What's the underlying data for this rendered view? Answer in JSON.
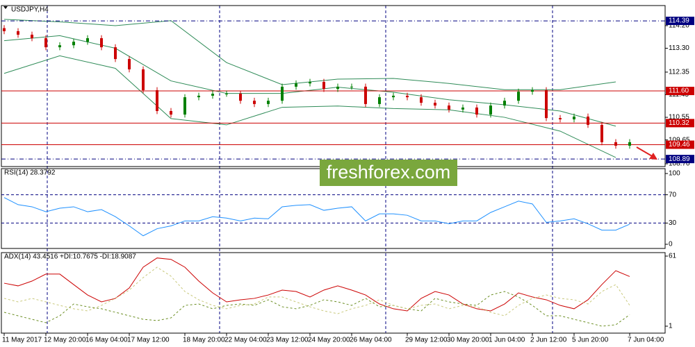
{
  "symbol_label": "USDJPY,H4",
  "watermark": "freshforex.com",
  "chart_data": [
    {
      "type": "candlestick",
      "title": "USDJPY,H4",
      "categories": [
        "11 May 2017",
        null,
        null,
        "12 May 20:00",
        null,
        null,
        "16 May 04:00",
        null,
        null,
        "17 May 12:00",
        null,
        null,
        null,
        "18 May 20:00",
        null,
        null,
        "22 May 04:00",
        null,
        null,
        "23 May 12:00",
        null,
        null,
        "24 May 20:00",
        null,
        null,
        "26 May 04:00",
        null,
        null,
        null,
        "29 May 12:00",
        null,
        null,
        "30 May 20:00",
        null,
        null,
        "1 Jun 04:00",
        null,
        null,
        "2 Jun 12:00",
        null,
        null,
        "5 Jun 20:00",
        null,
        null,
        null,
        "7 Jun 04:00"
      ],
      "open": [
        114.1,
        113.98,
        113.84,
        113.7,
        113.34,
        113.42,
        113.56,
        113.7,
        113.34,
        112.87,
        112.46,
        111.63,
        110.8,
        110.66,
        111.35,
        111.41,
        111.49,
        111.49,
        111.21,
        111.08,
        111.21,
        111.77,
        111.9,
        111.96,
        111.68,
        111.77,
        111.77,
        111.08,
        111.35,
        111.41,
        111.35,
        111.13,
        111.02,
        110.86,
        110.94,
        110.66,
        111.02,
        111.21,
        111.57,
        111.63,
        110.52,
        110.47,
        110.58,
        110.25,
        109.56,
        109.42
      ],
      "high": [
        114.22,
        114.1,
        113.96,
        113.82,
        113.54,
        113.68,
        113.82,
        113.82,
        113.46,
        112.99,
        112.58,
        111.75,
        110.92,
        111.47,
        111.53,
        111.61,
        111.61,
        111.61,
        111.33,
        111.33,
        111.89,
        112.02,
        112.08,
        112.08,
        111.89,
        111.89,
        111.89,
        111.47,
        111.53,
        111.53,
        111.47,
        111.25,
        111.14,
        111.06,
        111.06,
        111.14,
        111.33,
        111.69,
        111.75,
        111.75,
        110.64,
        110.7,
        110.7,
        110.37,
        109.68,
        109.68
      ],
      "low": [
        113.86,
        113.72,
        113.58,
        113.22,
        113.22,
        113.3,
        113.44,
        113.22,
        112.75,
        112.34,
        111.51,
        110.68,
        110.54,
        110.54,
        111.23,
        111.29,
        111.37,
        111.09,
        110.96,
        110.96,
        111.09,
        111.65,
        111.78,
        111.56,
        111.56,
        111.65,
        110.96,
        110.96,
        111.23,
        111.23,
        111.01,
        110.9,
        110.74,
        110.74,
        110.54,
        110.54,
        110.9,
        111.09,
        111.45,
        110.4,
        110.35,
        110.35,
        110.13,
        109.44,
        109.3,
        109.3
      ],
      "close": [
        113.98,
        113.84,
        113.7,
        113.34,
        113.42,
        113.56,
        113.7,
        113.34,
        112.87,
        112.46,
        111.63,
        110.8,
        110.66,
        111.35,
        111.41,
        111.49,
        111.49,
        111.21,
        111.08,
        111.21,
        111.77,
        111.9,
        111.96,
        111.68,
        111.77,
        111.77,
        111.08,
        111.35,
        111.41,
        111.35,
        111.13,
        111.02,
        110.86,
        110.94,
        110.66,
        111.02,
        111.21,
        111.57,
        111.63,
        110.52,
        110.47,
        110.58,
        110.25,
        109.56,
        109.42,
        109.56
      ],
      "up_color": "#008000",
      "down_color": "#cc0000",
      "overlays": [
        {
          "color": "#2e8b57",
          "x": [
            0,
            4,
            8,
            12,
            16,
            20,
            24,
            28,
            32,
            36,
            40,
            44
          ],
          "values": [
            114.45,
            114.35,
            114.2,
            114.4,
            112.73,
            111.85,
            112.07,
            112.1,
            111.9,
            111.65,
            111.65,
            111.96
          ]
        },
        {
          "color": "#2e8b57",
          "x": [
            0,
            4,
            8,
            12,
            16,
            20,
            24,
            28,
            32,
            36,
            40,
            44
          ],
          "values": [
            113.6,
            113.8,
            113.3,
            112.0,
            111.5,
            111.5,
            111.75,
            111.55,
            111.25,
            111.05,
            110.8,
            110.2
          ]
        },
        {
          "color": "#2e8b57",
          "x": [
            0,
            4,
            8,
            12,
            16,
            20,
            24,
            28,
            32,
            36,
            40,
            44
          ],
          "values": [
            112.3,
            113.0,
            112.5,
            110.5,
            110.25,
            110.95,
            111.0,
            110.9,
            110.85,
            110.55,
            110.0,
            108.95
          ]
        }
      ],
      "levels": [
        {
          "value": 114.39,
          "color": "#000080",
          "style": "dashed"
        },
        {
          "value": 111.6,
          "label": "111.60",
          "color": "#cc0000",
          "style": "solid"
        },
        {
          "value": 110.32,
          "color": "#cc0000",
          "style": "solid"
        },
        {
          "value": 109.46,
          "color": "#cc0000",
          "style": "solid"
        },
        {
          "value": 108.89,
          "color": "#000080",
          "style": "dashed"
        }
      ],
      "ylim": [
        108.59,
        115.0
      ],
      "yticks": [
        {
          "value": 114.2,
          "label": "114.20"
        },
        {
          "value": 113.3,
          "label": "113.30"
        },
        112.35,
        111.45,
        110.55,
        109.65,
        {
          "value": 108.7,
          "label": "108.70"
        }
      ],
      "grid": "none"
    },
    {
      "type": "line",
      "title": "RSI(14) 28.3792",
      "values": [
        66,
        56,
        53,
        46,
        51,
        53,
        46,
        49,
        39,
        26,
        12,
        22,
        26,
        33,
        33,
        39,
        37,
        33,
        37,
        36,
        53,
        55,
        56,
        48,
        51,
        53,
        33,
        43,
        43,
        41,
        33,
        33,
        29,
        33,
        33,
        45,
        53,
        61,
        57,
        31,
        33,
        36,
        29,
        20,
        20,
        28.4
      ],
      "color": "#1e90ff",
      "ylim": [
        -5.9,
        106.9
      ],
      "yticks": [
        0,
        30,
        70,
        100
      ],
      "grid": "inner"
    },
    {
      "type": "line",
      "title": "ADX(14) 43.4516 +DI:10.7675 -DI:18.9087",
      "series": [
        {
          "color": "#cc0000",
          "style": "solid",
          "values": [
            37.8,
            35.5,
            39.6,
            45.6,
            45.6,
            36.6,
            27.7,
            21.8,
            24.8,
            33.7,
            51.5,
            59.4,
            58.2,
            51.5,
            39.6,
            29.5,
            21.8,
            23.6,
            24.8,
            27.7,
            31.9,
            30.7,
            26,
            31.9,
            35.5,
            31.9,
            27.7,
            20,
            15.9,
            14.1,
            24.8,
            30.7,
            27.7,
            20,
            15.9,
            14.1,
            20,
            29.5,
            26,
            23.6,
            18.8,
            15.9,
            23.6,
            36.6,
            48.5,
            43.5
          ]
        },
        {
          "color": "#6b8e23",
          "style": "dashed",
          "values": [
            12.9,
            9.9,
            6.9,
            4,
            9.9,
            20,
            17.6,
            15.9,
            12.9,
            9.9,
            6.9,
            5.8,
            8.1,
            18.8,
            20,
            15.9,
            18.8,
            20,
            18.8,
            23.6,
            17.6,
            15.9,
            18.8,
            23.6,
            21.8,
            18.8,
            24.8,
            17.6,
            18.8,
            15.9,
            14.1,
            24.8,
            21.8,
            20,
            18.8,
            27.7,
            30.7,
            26,
            18.8,
            9.9,
            9.9,
            6.9,
            4,
            1,
            2.2,
            10.8
          ]
        },
        {
          "color": "#c8c87a",
          "style": "dashed",
          "values": [
            24.8,
            21.8,
            24.8,
            21.8,
            18.8,
            15.9,
            14.1,
            18.8,
            24.8,
            31.9,
            42.6,
            51.5,
            43.8,
            30.7,
            23.6,
            18.8,
            15.9,
            18.8,
            20,
            26,
            26,
            21.8,
            17.6,
            14.1,
            11.7,
            15.9,
            18.8,
            23.6,
            18.8,
            15.9,
            18.8,
            20,
            15.9,
            18.8,
            17.6,
            12.9,
            9.9,
            18.8,
            24.8,
            27.7,
            24.8,
            23.6,
            20,
            30.7,
            36.6,
            18.9
          ]
        }
      ],
      "ylim": [
        -4.94,
        63.97
      ],
      "yticks": [
        1,
        61
      ],
      "grid": "none"
    }
  ]
}
